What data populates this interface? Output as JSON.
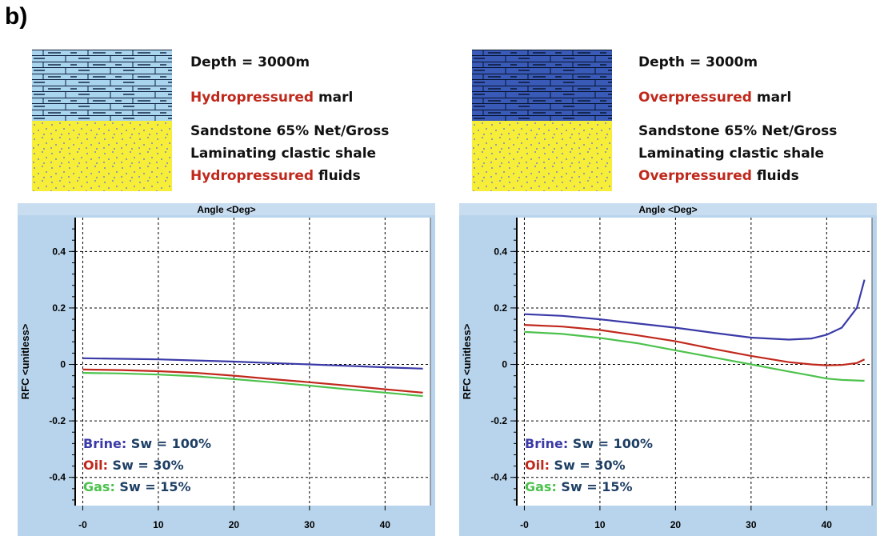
{
  "panel_label": "b)",
  "colors": {
    "brine": "#3a3aa8",
    "oil": "#c0281c",
    "gas": "#4cc24c",
    "text_dark": "#1e3f64",
    "marl_light": "#a8d4ee",
    "marl_dark": "#3a5ab8",
    "sand": "#f7ee3a",
    "frame": "#b8d4ec"
  },
  "scenarios": [
    {
      "depth": "Depth = 3000m",
      "marl_highlight": "Hydropressured",
      "marl_rest": " marl",
      "sand_line1": "Sandstone 65% Net/Gross",
      "sand_line2": "Laminating clastic shale",
      "fluids_highlight": "Hydropressured",
      "fluids_rest": " fluids"
    },
    {
      "depth": "Depth = 3000m",
      "marl_highlight": "Overpressured",
      "marl_rest": " marl",
      "sand_line1": "Sandstone 65% Net/Gross",
      "sand_line2": "Laminating clastic shale",
      "fluids_highlight": "Overpressured",
      "fluids_rest": " fluids"
    }
  ],
  "legend": [
    {
      "key": "Brine:",
      "text": " Sw = 100%"
    },
    {
      "key": "Oil:",
      "text": " Sw = 30%"
    },
    {
      "key": "Gas:",
      "text": " Sw = 15%"
    }
  ],
  "chart_data": [
    {
      "type": "line",
      "title": "Angle <Deg>",
      "ylabel": "RFC <unitless>",
      "xlim": [
        -1,
        46
      ],
      "ylim": [
        -0.5,
        0.52
      ],
      "xticks": [
        0,
        10,
        20,
        30,
        40
      ],
      "xtick_labels": [
        "-0",
        "10",
        "20",
        "30",
        "40"
      ],
      "yticks": [
        0.4,
        0.2,
        0,
        -0.2,
        -0.4
      ],
      "ytick_labels": [
        "0.4",
        "0.2",
        "0",
        "-0.2",
        "-0.4"
      ],
      "grid": true,
      "series": [
        {
          "name": "Brine",
          "color": "#3a3aa8",
          "x": [
            0,
            5,
            10,
            15,
            20,
            25,
            30,
            35,
            40,
            45
          ],
          "y": [
            0.022,
            0.02,
            0.018,
            0.014,
            0.01,
            0.005,
            0.0,
            -0.005,
            -0.01,
            -0.015
          ]
        },
        {
          "name": "Oil",
          "color": "#c0281c",
          "x": [
            0,
            5,
            10,
            15,
            20,
            25,
            30,
            35,
            40,
            45
          ],
          "y": [
            -0.018,
            -0.02,
            -0.024,
            -0.03,
            -0.04,
            -0.052,
            -0.063,
            -0.075,
            -0.088,
            -0.1
          ]
        },
        {
          "name": "Gas",
          "color": "#4cc24c",
          "x": [
            0,
            5,
            10,
            15,
            20,
            25,
            30,
            35,
            40,
            45
          ],
          "y": [
            -0.03,
            -0.032,
            -0.036,
            -0.042,
            -0.052,
            -0.063,
            -0.075,
            -0.088,
            -0.1,
            -0.112
          ]
        }
      ]
    },
    {
      "type": "line",
      "title": "Angle <Deg>",
      "ylabel": "RFC <unitless>",
      "xlim": [
        -1,
        46
      ],
      "ylim": [
        -0.5,
        0.52
      ],
      "xticks": [
        0,
        10,
        20,
        30,
        40
      ],
      "xtick_labels": [
        "-0",
        "10",
        "20",
        "30",
        "40"
      ],
      "yticks": [
        0.4,
        0.2,
        0,
        -0.2,
        -0.4
      ],
      "ytick_labels": [
        "0.4",
        "0.2",
        "0",
        "-0.2",
        "-0.4"
      ],
      "grid": true,
      "series": [
        {
          "name": "Brine",
          "color": "#3a3aa8",
          "x": [
            0,
            5,
            10,
            15,
            20,
            25,
            30,
            35,
            38,
            40,
            42,
            44,
            45
          ],
          "y": [
            0.178,
            0.172,
            0.16,
            0.145,
            0.13,
            0.112,
            0.095,
            0.088,
            0.092,
            0.105,
            0.13,
            0.2,
            0.3
          ]
        },
        {
          "name": "Oil",
          "color": "#c0281c",
          "x": [
            0,
            5,
            10,
            15,
            20,
            25,
            30,
            35,
            38,
            40,
            42,
            44,
            45
          ],
          "y": [
            0.14,
            0.134,
            0.122,
            0.103,
            0.082,
            0.055,
            0.03,
            0.008,
            0.0,
            -0.003,
            -0.002,
            0.005,
            0.018
          ]
        },
        {
          "name": "Gas",
          "color": "#4cc24c",
          "x": [
            0,
            5,
            10,
            15,
            20,
            25,
            30,
            35,
            38,
            40,
            42,
            44,
            45
          ],
          "y": [
            0.115,
            0.108,
            0.094,
            0.075,
            0.05,
            0.025,
            0.0,
            -0.025,
            -0.04,
            -0.05,
            -0.055,
            -0.057,
            -0.058
          ]
        }
      ]
    }
  ]
}
